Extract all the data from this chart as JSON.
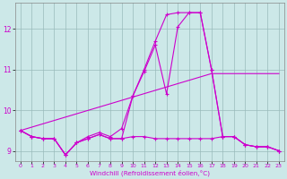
{
  "xlabel": "Windchill (Refroidissement éolien,°C)",
  "bg_color": "#cce8e8",
  "line_color": "#cc00cc",
  "xlim": [
    -0.5,
    23.5
  ],
  "ylim": [
    8.75,
    12.65
  ],
  "yticks": [
    9,
    10,
    11,
    12
  ],
  "xticks": [
    0,
    1,
    2,
    3,
    4,
    5,
    6,
    7,
    8,
    9,
    10,
    11,
    12,
    13,
    14,
    15,
    16,
    17,
    18,
    19,
    20,
    21,
    22,
    23
  ],
  "series": [
    {
      "x": [
        0,
        1,
        2,
        3,
        4,
        5,
        6,
        7,
        8,
        9,
        10,
        11,
        12,
        13,
        14,
        15,
        16,
        17,
        18,
        19,
        20,
        21,
        22,
        23
      ],
      "y": [
        9.5,
        9.35,
        9.3,
        9.3,
        8.9,
        9.2,
        9.3,
        9.4,
        9.3,
        9.3,
        9.35,
        9.35,
        9.3,
        9.3,
        9.3,
        9.3,
        9.3,
        9.3,
        9.35,
        9.35,
        9.15,
        9.1,
        9.1,
        9.0
      ],
      "marker": true
    },
    {
      "x": [
        0,
        1,
        2,
        3,
        4,
        5,
        6,
        7,
        8,
        9,
        10,
        11,
        12,
        13,
        14,
        15,
        16,
        17,
        18,
        19,
        20,
        21,
        22,
        23
      ],
      "y": [
        9.5,
        9.35,
        9.3,
        9.3,
        8.9,
        9.2,
        9.35,
        9.45,
        9.35,
        9.55,
        10.35,
        10.95,
        11.6,
        10.4,
        12.05,
        12.4,
        12.4,
        11.0,
        9.35,
        9.35,
        9.15,
        9.1,
        9.1,
        9.0
      ],
      "marker": true
    },
    {
      "x": [
        0,
        17,
        23
      ],
      "y": [
        9.5,
        10.9,
        10.9
      ],
      "marker": false
    },
    {
      "x": [
        0,
        1,
        2,
        3,
        4,
        5,
        6,
        7,
        8,
        9,
        10,
        11,
        12,
        13,
        14,
        15,
        16,
        17,
        18,
        19,
        20,
        21,
        22,
        23
      ],
      "y": [
        9.5,
        9.35,
        9.3,
        9.3,
        8.9,
        9.2,
        9.3,
        9.4,
        9.3,
        9.3,
        10.35,
        11.0,
        11.7,
        12.35,
        12.4,
        12.4,
        12.4,
        11.0,
        9.35,
        9.35,
        9.15,
        9.1,
        9.1,
        9.0
      ],
      "marker": true
    }
  ]
}
